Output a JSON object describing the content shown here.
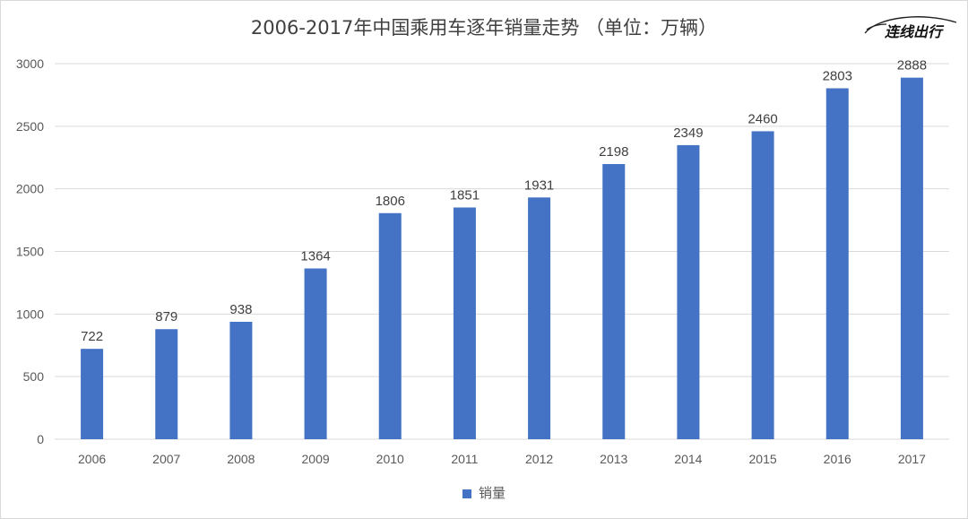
{
  "chart_data": {
    "type": "bar",
    "title": "2006-2017年中国乘用车逐年销量走势 （单位：万辆）",
    "categories": [
      "2006",
      "2007",
      "2008",
      "2009",
      "2010",
      "2011",
      "2012",
      "2013",
      "2014",
      "2015",
      "2016",
      "2017"
    ],
    "series": [
      {
        "name": "销量",
        "values": [
          722,
          879,
          938,
          1364,
          1806,
          1851,
          1931,
          2198,
          2349,
          2460,
          2803,
          2888
        ]
      }
    ],
    "ylim": [
      0,
      3000
    ],
    "yticks": [
      0,
      500,
      1000,
      1500,
      2000,
      2500,
      3000
    ],
    "grid": true,
    "legend_position": "bottom",
    "bar_color": "#4472C4",
    "data_labels": true
  },
  "watermark": {
    "text": "连线出行",
    "icon": "car-outline-icon"
  }
}
